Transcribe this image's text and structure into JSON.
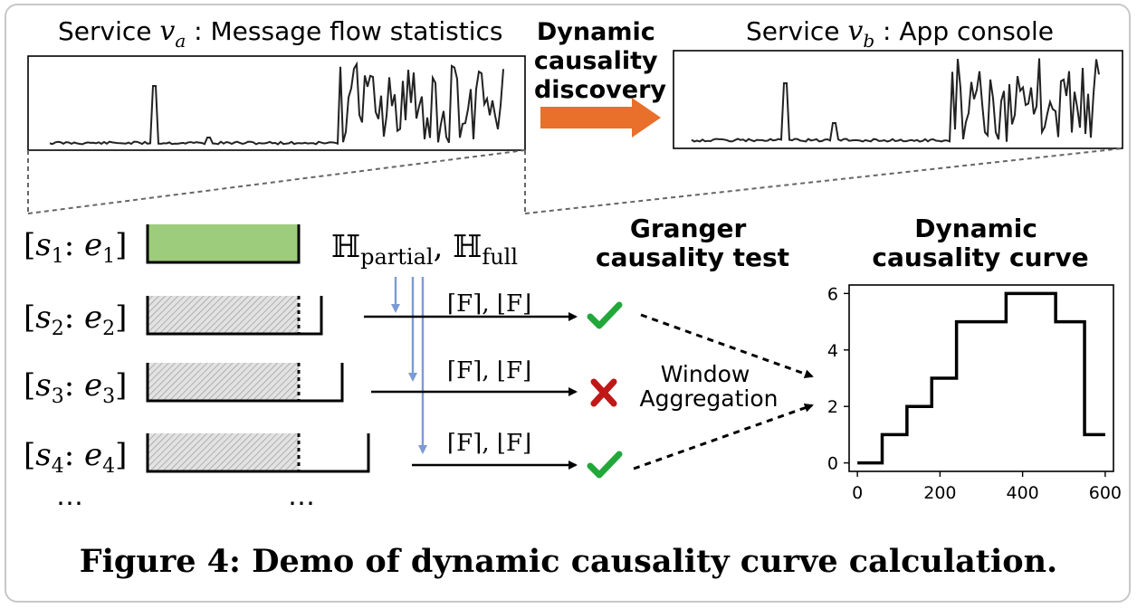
{
  "services": {
    "a": {
      "prefix": "Service ",
      "var": "v",
      "sub": "a",
      "suffix": " : Message flow statistics"
    },
    "b": {
      "prefix": "Service ",
      "var": "v",
      "sub": "b",
      "suffix": " : App console"
    }
  },
  "discovery_label": [
    "Dynamic",
    "causality",
    "discovery"
  ],
  "windows": [
    {
      "s": "s",
      "si": "1",
      "e": "e",
      "ei": "1"
    },
    {
      "s": "s",
      "si": "2",
      "e": "e",
      "ei": "2"
    },
    {
      "s": "s",
      "si": "3",
      "e": "e",
      "ei": "3"
    },
    {
      "s": "s",
      "si": "4",
      "e": "e",
      "ei": "4"
    }
  ],
  "ellipsis": "⋯",
  "hypothesis": {
    "H": "ℍ",
    "partial": "partial",
    "full": "full",
    "sep": ", "
  },
  "bounds_label": "⌈F⌉, ⌊F⌋",
  "test_results": [
    "pass",
    "fail",
    "pass"
  ],
  "granger_title": [
    "Granger",
    "causality test"
  ],
  "curve_title": [
    "Dynamic",
    "causality curve"
  ],
  "aggregation_label": [
    "Window",
    "Aggregation"
  ],
  "colors": {
    "green_fill": "#9ccc7c",
    "arrow_orange": "#e8702a",
    "blue_arrow": "#7c9bd4",
    "check": "#22a83a",
    "cross": "#c01818"
  },
  "chart_data": {
    "type": "line",
    "step": true,
    "title": "",
    "xlabel": "",
    "ylabel": "",
    "xlim": [
      -20,
      620
    ],
    "ylim": [
      -0.3,
      6.3
    ],
    "xticks": [
      0,
      200,
      400,
      600
    ],
    "yticks": [
      0,
      2,
      4,
      6
    ],
    "x": [
      0,
      60,
      120,
      180,
      240,
      360,
      480,
      550,
      600
    ],
    "y": [
      0,
      1,
      2,
      3,
      5,
      6,
      5,
      1,
      1
    ]
  },
  "caption": "Figure 4:  Demo of dynamic causality curve calculation."
}
